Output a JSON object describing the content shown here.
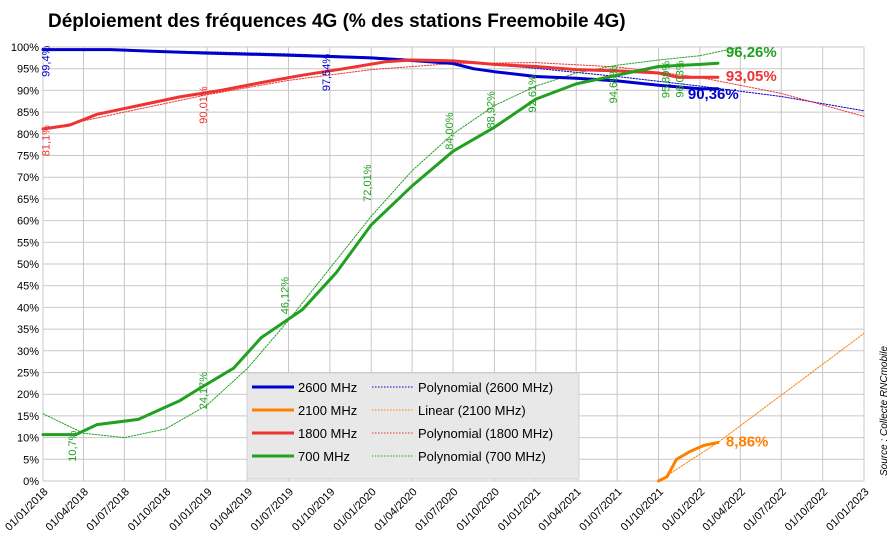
{
  "chart_data": {
    "type": "line",
    "title": "Déploiement des fréquences 4G (% des stations Freemobile 4G)",
    "source": "Source : Collecte RNCmobile",
    "ylim": [
      0,
      100
    ],
    "yticks": [
      0,
      5,
      10,
      15,
      20,
      25,
      30,
      35,
      40,
      45,
      50,
      55,
      60,
      65,
      70,
      75,
      80,
      85,
      90,
      95,
      100
    ],
    "ytick_labels": [
      "0%",
      "5%",
      "10%",
      "15%",
      "20%",
      "25%",
      "30%",
      "35%",
      "40%",
      "45%",
      "50%",
      "55%",
      "60%",
      "65%",
      "70%",
      "75%",
      "80%",
      "85%",
      "90%",
      "95%",
      "100%"
    ],
    "xlim": [
      "2018-01-01",
      "2023-01-01"
    ],
    "xticks": [
      "2018-01-01",
      "2018-04-01",
      "2018-07-01",
      "2018-10-01",
      "2019-01-01",
      "2019-04-01",
      "2019-07-01",
      "2019-10-01",
      "2020-01-01",
      "2020-04-01",
      "2020-07-01",
      "2020-10-01",
      "2021-01-01",
      "2021-04-01",
      "2021-07-01",
      "2021-10-01",
      "2022-01-01",
      "2022-04-01",
      "2022-07-01",
      "2022-10-01",
      "2023-01-01"
    ],
    "xtick_labels": [
      "01/01/2018",
      "01/04/2018",
      "01/07/2018",
      "01/10/2018",
      "01/01/2019",
      "01/04/2019",
      "01/07/2019",
      "01/10/2019",
      "01/01/2020",
      "01/04/2020",
      "01/07/2020",
      "01/10/2020",
      "01/01/2021",
      "01/04/2021",
      "01/07/2021",
      "01/10/2021",
      "01/01/2022",
      "01/04/2022",
      "01/07/2022",
      "01/10/2022",
      "01/01/2023"
    ],
    "grid": true,
    "legend_position": "bottom-center",
    "series": [
      {
        "name": "2600 MHz",
        "color": "#0000cc",
        "style": "solid",
        "points": [
          [
            "2018-01-01",
            99.4
          ],
          [
            "2018-06-01",
            99.4
          ],
          [
            "2018-09-01",
            99.0
          ],
          [
            "2019-01-01",
            98.6
          ],
          [
            "2019-07-01",
            98.1
          ],
          [
            "2019-10-01",
            97.8
          ],
          [
            "2020-01-01",
            97.5
          ],
          [
            "2020-04-01",
            96.9
          ],
          [
            "2020-07-01",
            96.2
          ],
          [
            "2020-08-15",
            95.0
          ],
          [
            "2020-10-01",
            94.3
          ],
          [
            "2021-01-01",
            93.2
          ],
          [
            "2021-04-01",
            92.8
          ],
          [
            "2021-07-01",
            92.2
          ],
          [
            "2021-10-01",
            91.2
          ],
          [
            "2022-01-01",
            90.4
          ],
          [
            "2022-02-10",
            90.36
          ]
        ]
      },
      {
        "name": "Polynomial (2600 MHz)",
        "color": "#0000cc",
        "style": "dotted",
        "points": [
          [
            "2018-01-01",
            99.3
          ],
          [
            "2018-07-01",
            99.2
          ],
          [
            "2019-01-01",
            98.9
          ],
          [
            "2019-07-01",
            98.4
          ],
          [
            "2020-01-01",
            97.7
          ],
          [
            "2020-07-01",
            96.6
          ],
          [
            "2021-01-01",
            95.1
          ],
          [
            "2021-07-01",
            93.2
          ],
          [
            "2022-01-01",
            91.0
          ],
          [
            "2022-07-01",
            88.6
          ],
          [
            "2023-01-01",
            85.3
          ]
        ]
      },
      {
        "name": "2100 MHz",
        "color": "#ff7f00",
        "style": "solid",
        "points": [
          [
            "2021-10-01",
            0
          ],
          [
            "2021-10-20",
            1.0
          ],
          [
            "2021-11-10",
            5.0
          ],
          [
            "2021-12-10",
            6.8
          ],
          [
            "2022-01-10",
            8.2
          ],
          [
            "2022-02-10",
            8.86
          ]
        ]
      },
      {
        "name": "Linear (2100 MHz)",
        "color": "#ff7f00",
        "style": "dotted",
        "points": [
          [
            "2021-10-01",
            0
          ],
          [
            "2022-02-10",
            8.86
          ],
          [
            "2023-01-01",
            34.0
          ]
        ]
      },
      {
        "name": "1800 MHz",
        "color": "#ee3333",
        "style": "solid",
        "points": [
          [
            "2018-01-01",
            81.1
          ],
          [
            "2018-03-01",
            82.0
          ],
          [
            "2018-05-01",
            84.5
          ],
          [
            "2018-08-01",
            86.5
          ],
          [
            "2018-11-01",
            88.5
          ],
          [
            "2019-02-01",
            90.0
          ],
          [
            "2019-05-01",
            91.8
          ],
          [
            "2019-08-01",
            93.5
          ],
          [
            "2019-11-01",
            95.0
          ],
          [
            "2020-02-01",
            96.6
          ],
          [
            "2020-04-01",
            97.0
          ],
          [
            "2020-07-01",
            96.8
          ],
          [
            "2020-10-01",
            96.0
          ],
          [
            "2021-01-01",
            95.5
          ],
          [
            "2021-04-01",
            94.8
          ],
          [
            "2021-07-01",
            94.5
          ],
          [
            "2021-10-01",
            94.0
          ],
          [
            "2021-11-15",
            93.0
          ],
          [
            "2022-02-10",
            93.05
          ]
        ]
      },
      {
        "name": "Polynomial (1800 MHz)",
        "color": "#ee3333",
        "style": "dotted",
        "points": [
          [
            "2018-01-01",
            81.0
          ],
          [
            "2018-07-01",
            85.0
          ],
          [
            "2019-01-01",
            89.0
          ],
          [
            "2019-07-01",
            92.3
          ],
          [
            "2020-01-01",
            94.8
          ],
          [
            "2020-07-01",
            96.2
          ],
          [
            "2021-01-01",
            96.4
          ],
          [
            "2021-07-01",
            95.4
          ],
          [
            "2022-01-01",
            93.0
          ],
          [
            "2022-07-01",
            89.3
          ],
          [
            "2023-01-01",
            84.0
          ]
        ]
      },
      {
        "name": "700 MHz",
        "color": "#22a022",
        "style": "solid",
        "points": [
          [
            "2018-01-01",
            10.7
          ],
          [
            "2018-03-15",
            10.7
          ],
          [
            "2018-05-01",
            13.0
          ],
          [
            "2018-08-01",
            14.2
          ],
          [
            "2018-11-01",
            18.5
          ],
          [
            "2018-12-10",
            21.0
          ],
          [
            "2019-03-01",
            26.0
          ],
          [
            "2019-05-01",
            33.0
          ],
          [
            "2019-08-01",
            39.5
          ],
          [
            "2019-10-15",
            48.0
          ],
          [
            "2020-01-01",
            59.0
          ],
          [
            "2020-04-01",
            68.0
          ],
          [
            "2020-07-01",
            76.0
          ],
          [
            "2020-10-01",
            81.5
          ],
          [
            "2021-01-01",
            88.0
          ],
          [
            "2021-04-01",
            91.5
          ],
          [
            "2021-07-01",
            93.5
          ],
          [
            "2021-10-01",
            95.5
          ],
          [
            "2022-01-01",
            96.0
          ],
          [
            "2022-02-10",
            96.26
          ]
        ]
      },
      {
        "name": "Polynomial (700 MHz)",
        "color": "#22a022",
        "style": "dotted",
        "points": [
          [
            "2018-01-01",
            15.5
          ],
          [
            "2018-04-01",
            11.0
          ],
          [
            "2018-07-01",
            10.0
          ],
          [
            "2018-10-01",
            12.0
          ],
          [
            "2019-01-01",
            17.5
          ],
          [
            "2019-04-01",
            26.0
          ],
          [
            "2019-07-01",
            37.0
          ],
          [
            "2019-10-01",
            49.0
          ],
          [
            "2020-01-01",
            61.0
          ],
          [
            "2020-04-01",
            71.5
          ],
          [
            "2020-07-01",
            80.0
          ],
          [
            "2020-10-01",
            86.5
          ],
          [
            "2021-01-01",
            91.0
          ],
          [
            "2021-04-01",
            94.0
          ],
          [
            "2021-07-01",
            95.8
          ],
          [
            "2021-10-01",
            97.0
          ],
          [
            "2022-01-01",
            98.0
          ],
          [
            "2022-04-01",
            100.0
          ]
        ]
      }
    ],
    "data_labels": [
      {
        "text": "99,4%",
        "x": "2018-01-15",
        "y": 99.4,
        "color": "#0000cc"
      },
      {
        "text": "81,1%",
        "x": "2018-01-15",
        "y": 81.1,
        "color": "#ee3333"
      },
      {
        "text": "10,7%",
        "x": "2018-03-15",
        "y": 10.7,
        "color": "#22a022"
      },
      {
        "text": "90,01%",
        "x": "2019-01-01",
        "y": 90.0,
        "color": "#ee3333"
      },
      {
        "text": "24,17%",
        "x": "2019-01-01",
        "y": 24.2,
        "color": "#22a022"
      },
      {
        "text": "46,12%",
        "x": "2019-07-01",
        "y": 46.1,
        "color": "#22a022"
      },
      {
        "text": "97,54%",
        "x": "2019-10-01",
        "y": 97.5,
        "color": "#0000cc"
      },
      {
        "text": "72,01%",
        "x": "2020-01-01",
        "y": 72.0,
        "color": "#22a022"
      },
      {
        "text": "84,00%",
        "x": "2020-07-01",
        "y": 84.0,
        "color": "#22a022"
      },
      {
        "text": "88,92%",
        "x": "2020-10-01",
        "y": 88.9,
        "color": "#22a022"
      },
      {
        "text": "92,61%",
        "x": "2021-01-01",
        "y": 92.6,
        "color": "#22a022"
      },
      {
        "text": "94,69%",
        "x": "2021-07-01",
        "y": 94.7,
        "color": "#22a022"
      },
      {
        "text": "95,89%",
        "x": "2021-10-25",
        "y": 95.9,
        "color": "#22a022"
      },
      {
        "text": "96,03%",
        "x": "2021-11-25",
        "y": 96.0,
        "color": "#22a022"
      }
    ],
    "end_labels": [
      {
        "text": "96,26%",
        "x": "2022-02-10",
        "y": 96.26,
        "color": "#22a022"
      },
      {
        "text": "93,05%",
        "x": "2022-02-10",
        "y": 93.05,
        "color": "#ee3333"
      },
      {
        "text": "90,36%",
        "x": "2022-02-10",
        "y": 90.36,
        "color": "#0000cc"
      },
      {
        "text": "8,86%",
        "x": "2022-02-10",
        "y": 8.86,
        "color": "#ff7f00"
      }
    ],
    "legend": [
      {
        "label": "2600 MHz",
        "color": "#0000cc",
        "style": "solid"
      },
      {
        "label": "Polynomial (2600 MHz)",
        "color": "#0000cc",
        "style": "dotted"
      },
      {
        "label": "2100 MHz",
        "color": "#ff7f00",
        "style": "solid"
      },
      {
        "label": "Linear (2100 MHz)",
        "color": "#ff7f00",
        "style": "dotted"
      },
      {
        "label": "1800 MHz",
        "color": "#ee3333",
        "style": "solid"
      },
      {
        "label": "Polynomial (1800 MHz)",
        "color": "#ee3333",
        "style": "dotted"
      },
      {
        "label": "700 MHz",
        "color": "#22a022",
        "style": "solid"
      },
      {
        "label": "Polynomial (700 MHz)",
        "color": "#22a022",
        "style": "dotted"
      }
    ]
  }
}
